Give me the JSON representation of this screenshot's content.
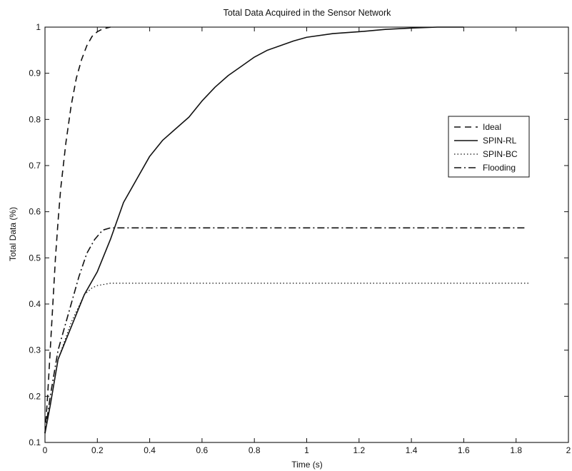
{
  "chart_data": {
    "type": "line",
    "title": "Total Data Acquired in the Sensor Network",
    "xlabel": "Time (s)",
    "ylabel": "Total Data (%)",
    "xlim": [
      0,
      2
    ],
    "ylim": [
      0.1,
      1
    ],
    "xticks": [
      0,
      0.2,
      0.4,
      0.6,
      0.8,
      1,
      1.2,
      1.4,
      1.6,
      1.8,
      2
    ],
    "xtick_labels": [
      "0",
      "0.2",
      "0.4",
      "0.6",
      "0.8",
      "1",
      "1.2",
      "1.4",
      "1.6",
      "1.8",
      "2"
    ],
    "yticks": [
      0.1,
      0.2,
      0.3,
      0.4,
      0.5,
      0.6,
      0.7,
      0.8,
      0.9,
      1
    ],
    "ytick_labels": [
      "0.1",
      "0.2",
      "0.3",
      "0.4",
      "0.5",
      "0.6",
      "0.7",
      "0.8",
      "0.9",
      "1"
    ],
    "grid": false,
    "legend_position": "right",
    "series": [
      {
        "name": "Ideal",
        "style": "dashed",
        "color": "#111111",
        "points": [
          [
            0.0,
            0.12
          ],
          [
            0.01,
            0.2
          ],
          [
            0.02,
            0.3
          ],
          [
            0.03,
            0.4
          ],
          [
            0.04,
            0.5
          ],
          [
            0.05,
            0.58
          ],
          [
            0.06,
            0.65
          ],
          [
            0.08,
            0.75
          ],
          [
            0.1,
            0.83
          ],
          [
            0.12,
            0.89
          ],
          [
            0.14,
            0.93
          ],
          [
            0.16,
            0.96
          ],
          [
            0.18,
            0.98
          ],
          [
            0.2,
            0.99
          ],
          [
            0.22,
            0.996
          ],
          [
            0.25,
            1.0
          ]
        ]
      },
      {
        "name": "SPIN-RL",
        "style": "solid",
        "color": "#111111",
        "points": [
          [
            0.0,
            0.12
          ],
          [
            0.02,
            0.18
          ],
          [
            0.05,
            0.28
          ],
          [
            0.1,
            0.35
          ],
          [
            0.15,
            0.42
          ],
          [
            0.2,
            0.47
          ],
          [
            0.25,
            0.54
          ],
          [
            0.3,
            0.62
          ],
          [
            0.35,
            0.67
          ],
          [
            0.4,
            0.72
          ],
          [
            0.45,
            0.755
          ],
          [
            0.5,
            0.78
          ],
          [
            0.55,
            0.805
          ],
          [
            0.6,
            0.84
          ],
          [
            0.65,
            0.87
          ],
          [
            0.7,
            0.895
          ],
          [
            0.75,
            0.915
          ],
          [
            0.8,
            0.935
          ],
          [
            0.85,
            0.95
          ],
          [
            0.9,
            0.96
          ],
          [
            0.95,
            0.97
          ],
          [
            1.0,
            0.978
          ],
          [
            1.1,
            0.986
          ],
          [
            1.2,
            0.99
          ],
          [
            1.3,
            0.995
          ],
          [
            1.4,
            0.998
          ],
          [
            1.5,
            1.0
          ],
          [
            1.6,
            1.0
          ]
        ]
      },
      {
        "name": "SPIN-BC",
        "style": "dotted",
        "color": "#111111",
        "points": [
          [
            0.0,
            0.12
          ],
          [
            0.02,
            0.18
          ],
          [
            0.05,
            0.28
          ],
          [
            0.1,
            0.36
          ],
          [
            0.15,
            0.42
          ],
          [
            0.18,
            0.435
          ],
          [
            0.2,
            0.44
          ],
          [
            0.25,
            0.445
          ],
          [
            0.5,
            0.445
          ],
          [
            1.0,
            0.445
          ],
          [
            1.5,
            0.445
          ],
          [
            1.85,
            0.445
          ]
        ]
      },
      {
        "name": "Flooding",
        "style": "dashdot",
        "color": "#111111",
        "points": [
          [
            0.0,
            0.12
          ],
          [
            0.02,
            0.2
          ],
          [
            0.05,
            0.3
          ],
          [
            0.1,
            0.4
          ],
          [
            0.13,
            0.46
          ],
          [
            0.16,
            0.51
          ],
          [
            0.19,
            0.54
          ],
          [
            0.22,
            0.56
          ],
          [
            0.25,
            0.565
          ],
          [
            0.5,
            0.565
          ],
          [
            1.0,
            0.565
          ],
          [
            1.5,
            0.565
          ],
          [
            1.84,
            0.565
          ]
        ]
      }
    ]
  }
}
